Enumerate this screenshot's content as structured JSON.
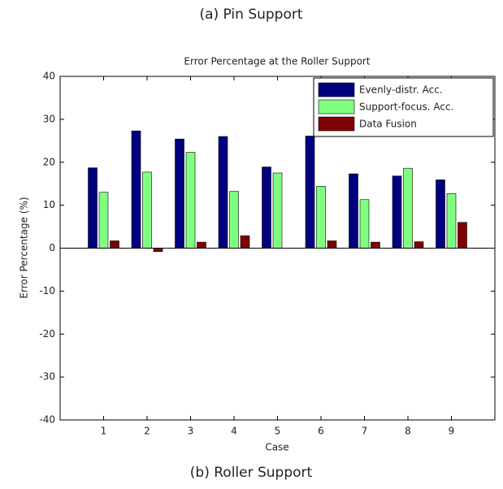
{
  "captions": {
    "top": "(a) Pin Support",
    "bottom": "(b) Roller Support"
  },
  "chart_data": {
    "type": "bar",
    "title": "Error Percentage at the Roller Support",
    "x_label": "Case",
    "y_label": "Error Percentage (%)",
    "categories": [
      "1",
      "2",
      "3",
      "4",
      "5",
      "6",
      "7",
      "8",
      "9"
    ],
    "series": [
      {
        "name": "Evenly-distr. Acc.",
        "color": "#00007f",
        "values": [
          18.7,
          27.3,
          25.4,
          26.0,
          18.9,
          26.1,
          17.3,
          16.8,
          15.9
        ]
      },
      {
        "name": "Support-focus. Acc.",
        "color": "#80ff80",
        "values": [
          13.0,
          17.7,
          22.3,
          13.2,
          17.5,
          14.4,
          11.3,
          18.6,
          12.7
        ]
      },
      {
        "name": "Data Fusion",
        "color": "#7f0000",
        "values": [
          1.7,
          -0.8,
          1.4,
          2.9,
          0,
          1.7,
          1.4,
          1.5,
          6.0
        ]
      }
    ],
    "ylim": [
      -40,
      40
    ],
    "yticks": [
      -40,
      -30,
      -20,
      -10,
      0,
      10,
      20,
      30,
      40
    ],
    "grid": false,
    "legend": "northeast"
  }
}
